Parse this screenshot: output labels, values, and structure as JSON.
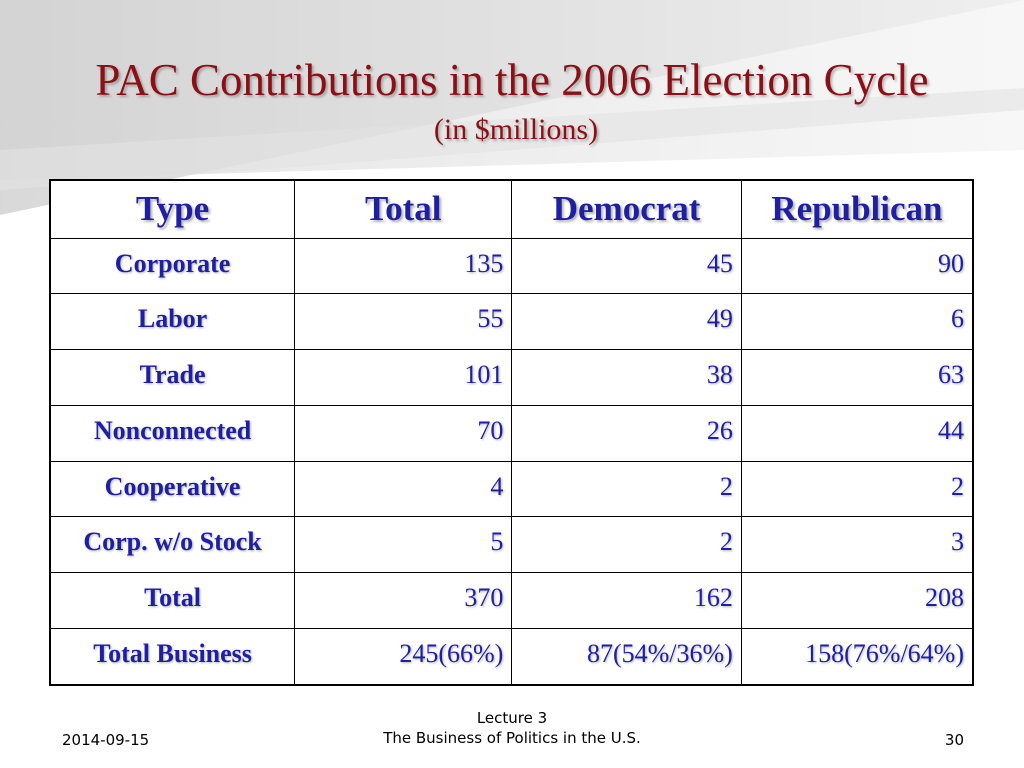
{
  "slide": {
    "title": "PAC Contributions in the 2006 Election Cycle",
    "subtitle": "(in $millions)"
  },
  "table": {
    "headers": [
      "Type",
      "Total",
      "Democrat",
      "Republican"
    ],
    "rows": [
      [
        "Corporate",
        "135",
        "45",
        "90"
      ],
      [
        "Labor",
        "55",
        "49",
        "6"
      ],
      [
        "Trade",
        "101",
        "38",
        "63"
      ],
      [
        "Nonconnected",
        "70",
        "26",
        "44"
      ],
      [
        "Cooperative",
        "4",
        "2",
        "2"
      ],
      [
        "Corp. w/o Stock",
        "5",
        "2",
        "3"
      ],
      [
        "Total",
        "370",
        "162",
        "208"
      ],
      [
        "Total Business",
        "245(66%)",
        "87(54%/36%)",
        "158(76%/64%)"
      ]
    ]
  },
  "footer": {
    "date": "2014-09-15",
    "lecture": "Lecture 3",
    "course": "The Business of Politics in the U.S.",
    "page": "30"
  },
  "colors": {
    "title": "#8b0f14",
    "table_text": "#1f1fa3"
  }
}
